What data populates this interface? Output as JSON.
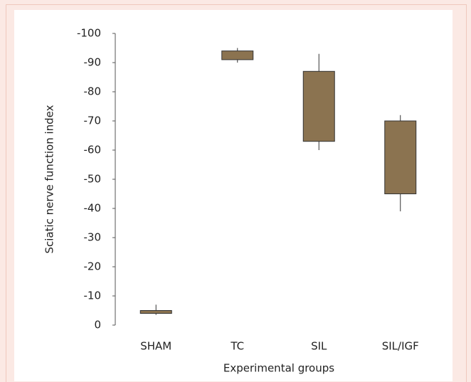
{
  "chart_data": {
    "type": "box",
    "y_label": "Sciatic nerve function index",
    "x_label": "Experimental groups",
    "categories": [
      "SHAM",
      "TC",
      "SIL",
      "SIL/IGF"
    ],
    "whisker_low": [
      -3.5,
      -90,
      -60,
      -39
    ],
    "q1": [
      -4,
      -91,
      -63,
      -45
    ],
    "q3": [
      -5,
      -94,
      -87,
      -70
    ],
    "whisker_high": [
      -7,
      -95,
      -93,
      -72
    ],
    "color": "#8b7350",
    "ylim": [
      0,
      -100
    ],
    "yticks": [
      0,
      -10,
      -20,
      -30,
      -40,
      -50,
      -60,
      -70,
      -80,
      -90,
      -100
    ],
    "grid": false
  }
}
